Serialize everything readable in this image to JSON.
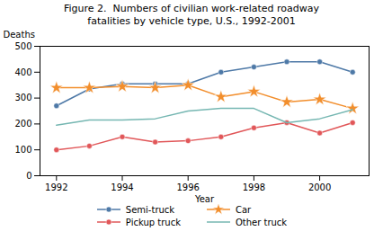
{
  "chart_data": {
    "type": "line",
    "title": "Figure 2.  Numbers of civilian work-related roadway\nfatalities by vehicle type, U.S., 1992-2001",
    "x": [
      1992,
      1993,
      1994,
      1995,
      1996,
      1997,
      1998,
      1999,
      2000,
      2001
    ],
    "series": [
      {
        "name": "Semi-truck",
        "marker": "circle",
        "values": [
          270,
          335,
          355,
          355,
          355,
          400,
          420,
          440,
          440,
          400
        ]
      },
      {
        "name": "Car",
        "marker": "star",
        "values": [
          340,
          340,
          345,
          340,
          350,
          305,
          325,
          285,
          295,
          260
        ]
      },
      {
        "name": "Pickup truck",
        "marker": "circle",
        "values": [
          100,
          115,
          150,
          130,
          135,
          150,
          185,
          205,
          165,
          205
        ]
      },
      {
        "name": "Other truck",
        "marker": "none",
        "values": [
          195,
          215,
          215,
          220,
          250,
          260,
          260,
          205,
          220,
          255
        ]
      }
    ],
    "xlabel": "Year",
    "ylabel": "Deaths",
    "xlim": [
      1991.5,
      2001.5
    ],
    "xticks": [
      1992,
      1994,
      1996,
      1998,
      2000
    ],
    "ylim": [
      0,
      500
    ],
    "yticks": [
      0,
      100,
      200,
      300,
      400,
      500
    ],
    "grid": false,
    "legend": "bottom"
  }
}
